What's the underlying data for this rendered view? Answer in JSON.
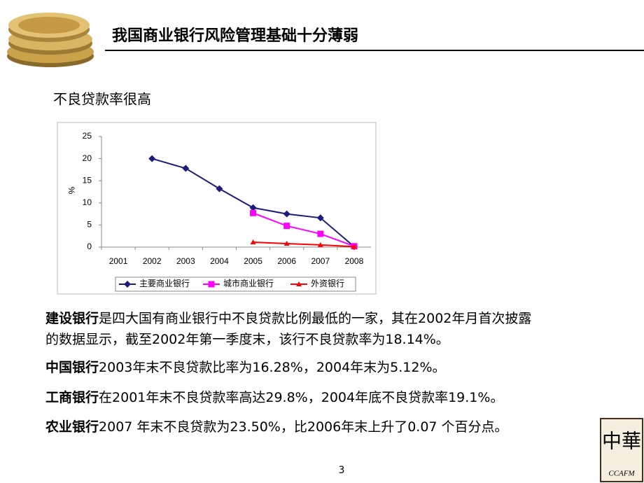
{
  "header": {
    "title": "我国商业银行风险管理基础十分薄弱"
  },
  "subtitle": "不良贷款率很高",
  "chart_data": {
    "type": "line",
    "categories": [
      "2001",
      "2002",
      "2003",
      "2004",
      "2005",
      "2006",
      "2007",
      "2008"
    ],
    "ylabel": "%",
    "ylim": [
      0,
      25
    ],
    "yticks": [
      0,
      5,
      10,
      15,
      20,
      25
    ],
    "series": [
      {
        "name": "主要商业银行",
        "color": "#1c1c7a",
        "marker": "diamond",
        "values": [
          null,
          20.0,
          17.8,
          13.2,
          8.9,
          7.5,
          6.6,
          0.1
        ]
      },
      {
        "name": "城市商业银行",
        "color": "#ff00ff",
        "marker": "square",
        "values": [
          null,
          null,
          null,
          null,
          7.7,
          4.8,
          3.0,
          0.2
        ]
      },
      {
        "name": "外资银行",
        "color": "#ff0000",
        "marker": "triangle",
        "values": [
          null,
          null,
          null,
          null,
          1.1,
          0.8,
          0.5,
          0.1
        ]
      }
    ],
    "legend": "bottom"
  },
  "paragraphs": [
    {
      "bold": "建设银行",
      "lines": [
        "是四大国有商业银行中不良贷款比例最低的一家，其在2002年月首次披露",
        "的数据显示，截至2002年第一季度末，该行不良贷款率为18.14%。"
      ]
    },
    {
      "bold": "中国银行",
      "lines": [
        "2003年末不良贷款比率为16.28%，2004年末为5.12%。"
      ]
    },
    {
      "bold": "工商银行",
      "lines": [
        "在2001年末不良贷款率高达29.8%，2004年底不良贷款率19.1%。"
      ]
    },
    {
      "bold": "农业银行",
      "lines": [
        "2007 年末不良贷款为23.50%，比2006年末上升了0.07 个百分点。"
      ]
    }
  ],
  "page_number": "3",
  "logo": {
    "mark": "中華",
    "text": "CCAFM"
  }
}
